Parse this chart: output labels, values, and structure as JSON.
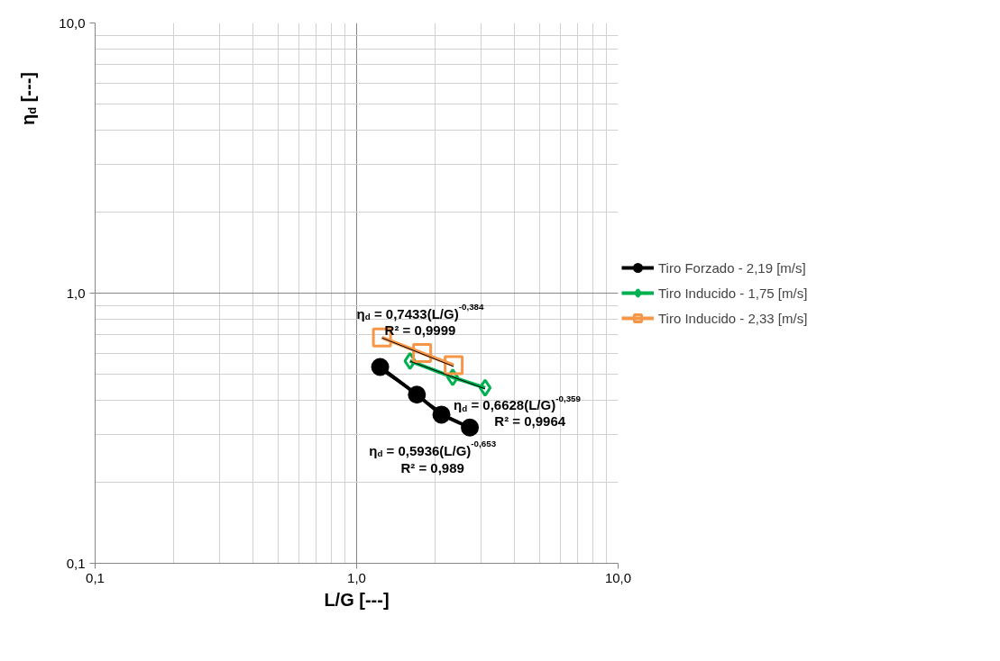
{
  "chart_data": {
    "type": "line",
    "xlabel": "L/G [---]",
    "ylabel": "η$_{d}$ [---]",
    "log": "xy",
    "xlim": [
      0.1,
      10
    ],
    "ylim": [
      0.1,
      10
    ],
    "xticks": [
      {
        "value": 0.1,
        "label": "0,1"
      },
      {
        "value": 1,
        "label": "1,0"
      },
      {
        "value": 10,
        "label": "10,0"
      }
    ],
    "yticks": [
      {
        "value": 0.1,
        "label": "0,1"
      },
      {
        "value": 1,
        "label": "1,0"
      },
      {
        "value": 10,
        "label": "10,0"
      }
    ],
    "grid": true,
    "legend": "right",
    "line_style": "solid",
    "series": [
      {
        "name": "Tiro Forzado - 2,19 [m/s]",
        "color": "#000000",
        "marker": "circle",
        "x": [
          1.23,
          1.7,
          2.11,
          2.71
        ],
        "values": [
          0.533,
          0.421,
          0.355,
          0.318
        ]
      },
      {
        "name": "Tiro Inducido - 1,75 [m/s]",
        "color": "#00b050",
        "marker": "diamond",
        "x": [
          1.6,
          2.33,
          3.1
        ],
        "values": [
          0.561,
          0.488,
          0.446
        ]
      },
      {
        "name": "Tiro Inducido - 2,33 [m/s]",
        "color": "#f79646",
        "marker": "square",
        "x": [
          1.25,
          1.78,
          2.35
        ],
        "values": [
          0.685,
          0.6,
          0.541
        ]
      },
      {
        "type": "line",
        "color": "#000000",
        "marker": "none",
        "x": [
          1.23,
          2.71
        ],
        "values": [
          0.519,
          0.31
        ]
      },
      {
        "type": "line",
        "color": "#000000",
        "marker": "none",
        "x": [
          1.6,
          3.1
        ],
        "values": [
          0.56,
          0.442
        ]
      },
      {
        "type": "line",
        "color": "#000000",
        "marker": "none",
        "x": [
          1.25,
          2.35
        ],
        "values": [
          0.683,
          0.535
        ]
      }
    ],
    "annotations": [
      "η$_{d}$ = 0,7433(L/G)$^{-0,384}$",
      "R² = 0,9999",
      "η$_{d}$ = 0,6628(L/G)$^{-0,359}$",
      "R² = 0,9964",
      "η$_{d}$ = 0,5936(L/G)$^{-0,653}$",
      "R² = 0,989"
    ]
  }
}
